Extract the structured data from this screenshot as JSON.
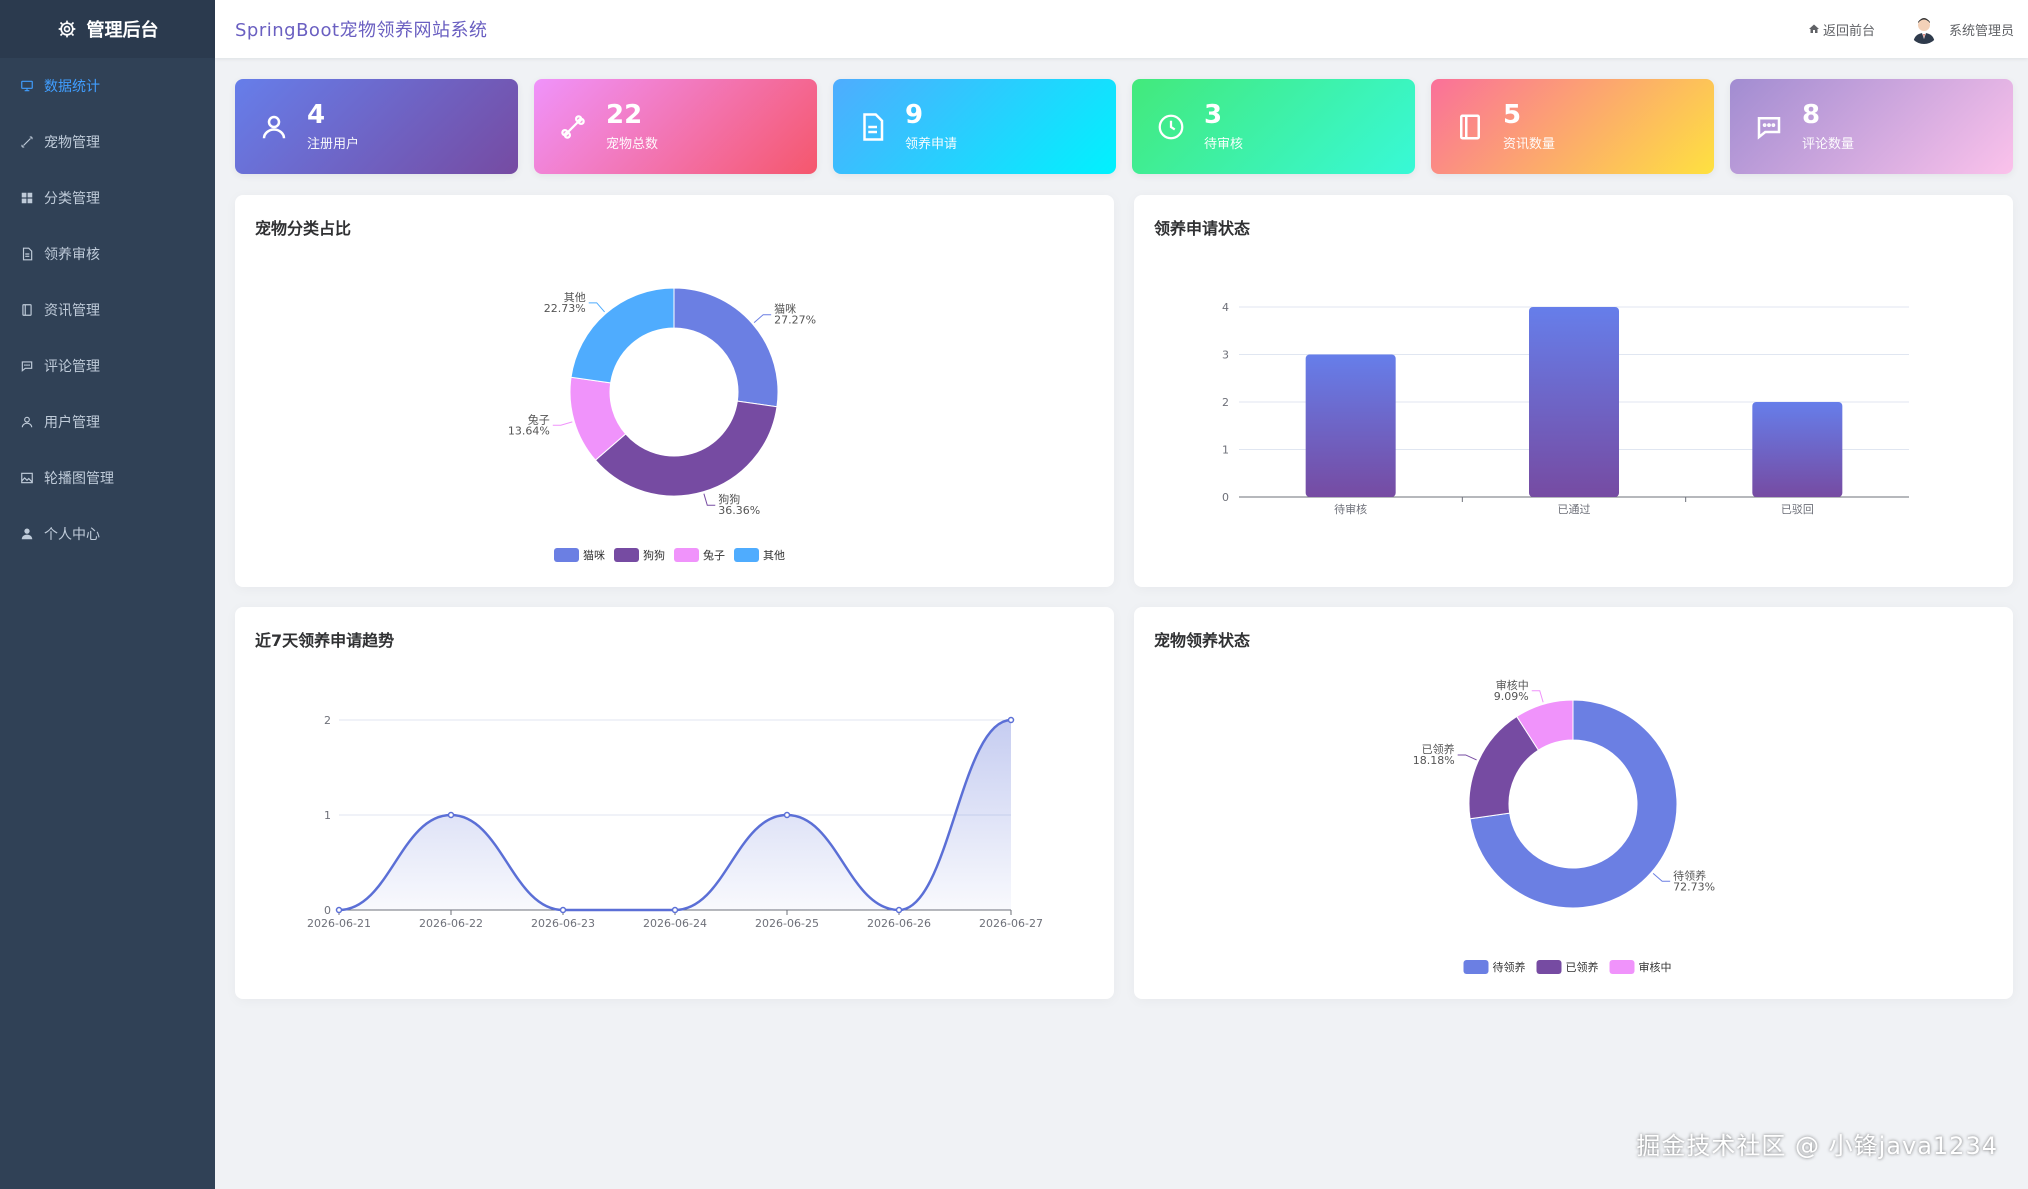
{
  "sidebar": {
    "title": "管理后台",
    "items": [
      {
        "label": "数据统计",
        "icon": "monitor-icon",
        "active": true
      },
      {
        "label": "宠物管理",
        "icon": "pet-bone-icon"
      },
      {
        "label": "分类管理",
        "icon": "grid-icon"
      },
      {
        "label": "领养审核",
        "icon": "document-icon"
      },
      {
        "label": "资讯管理",
        "icon": "notebook-icon"
      },
      {
        "label": "评论管理",
        "icon": "comment-icon"
      },
      {
        "label": "用户管理",
        "icon": "user-icon"
      },
      {
        "label": "轮播图管理",
        "icon": "picture-icon"
      },
      {
        "label": "个人中心",
        "icon": "person-icon"
      }
    ]
  },
  "header": {
    "site_title": "SpringBoot宠物领养网站系统",
    "back_label": "返回前台",
    "user_name": "系统管理员"
  },
  "stats": [
    {
      "value": "4",
      "label": "注册用户",
      "icon": "user-icon",
      "colors": [
        "#667eea",
        "#764ba2"
      ]
    },
    {
      "value": "22",
      "label": "宠物总数",
      "icon": "bone-icon",
      "colors": [
        "#f093fb",
        "#f5576c"
      ]
    },
    {
      "value": "9",
      "label": "领养申请",
      "icon": "document-icon",
      "colors": [
        "#4facfe",
        "#00f2fe"
      ]
    },
    {
      "value": "3",
      "label": "待审核",
      "icon": "clock-icon",
      "colors": [
        "#43e97b",
        "#38f9d7"
      ]
    },
    {
      "value": "5",
      "label": "资讯数量",
      "icon": "notebook-icon",
      "colors": [
        "#fa709a",
        "#fee140"
      ]
    },
    {
      "value": "8",
      "label": "评论数量",
      "icon": "comment-icon",
      "colors": [
        "#a18cd1",
        "#fbc2eb"
      ]
    }
  ],
  "panels": {
    "category": {
      "title": "宠物分类占比"
    },
    "status": {
      "title": "领养申请状态"
    },
    "trend": {
      "title": "近7天领养申请趋势"
    },
    "adopt": {
      "title": "宠物领养状态"
    }
  },
  "chart_data": [
    {
      "type": "pie",
      "variant": "donut",
      "title": "宠物分类占比",
      "labels": [
        "猫咪",
        "狗狗",
        "兔子",
        "其他"
      ],
      "values": [
        27.27,
        36.36,
        13.64,
        22.73
      ],
      "value_labels": [
        "27.27%",
        "36.36%",
        "13.64%",
        "22.73%"
      ],
      "colors": [
        "#6b7fe3",
        "#764ba2",
        "#f093fb",
        "#4facfe"
      ],
      "legend": "bottom"
    },
    {
      "type": "bar",
      "title": "领养申请状态",
      "categories": [
        "待审核",
        "已通过",
        "已驳回"
      ],
      "values": [
        3,
        4,
        2
      ],
      "ylim": [
        0,
        4
      ],
      "yticks": [
        "0",
        "1",
        "2",
        "3",
        "4"
      ],
      "grid": true,
      "colors": [
        "#667eea",
        "#764ba2"
      ]
    },
    {
      "type": "line",
      "title": "近7天领养申请趋势",
      "x": [
        "2026-06-21",
        "2026-06-22",
        "2026-06-23",
        "2026-06-24",
        "2026-06-25",
        "2026-06-26",
        "2026-06-27"
      ],
      "values": [
        0,
        1,
        0,
        0,
        1,
        0,
        2
      ],
      "ylim": [
        0,
        2
      ],
      "yticks": [
        "0",
        "1",
        "2"
      ],
      "smooth": true,
      "area": true,
      "grid": true,
      "color": "#5b6fd6"
    },
    {
      "type": "pie",
      "variant": "donut",
      "title": "宠物领养状态",
      "labels": [
        "待领养",
        "已领养",
        "审核中"
      ],
      "values": [
        72.73,
        18.18,
        9.09
      ],
      "value_labels": [
        "72.73%",
        "18.18%",
        "9.09%"
      ],
      "colors": [
        "#6b7fe3",
        "#764ba2",
        "#f093fb"
      ],
      "legend": "bottom"
    }
  ],
  "watermark": "掘金技术社区 @ 小锋java1234"
}
